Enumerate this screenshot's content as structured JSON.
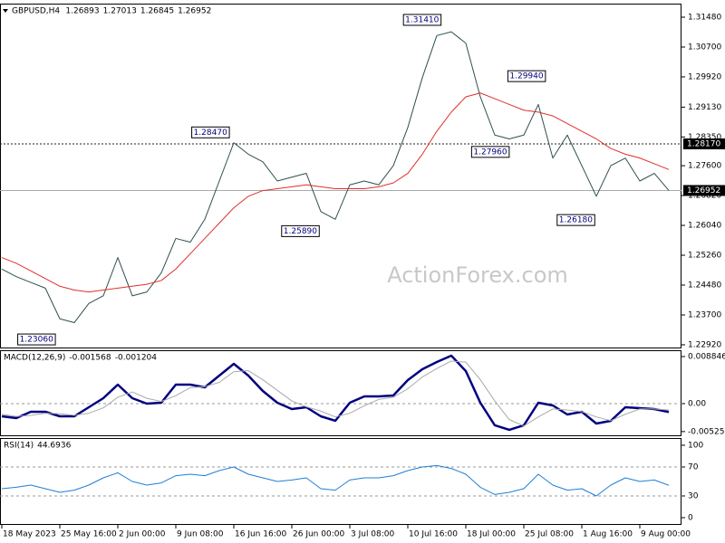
{
  "chart_data": [
    {
      "type": "line",
      "title": "GBPUSD,H4",
      "ohlc": [
        1.26893,
        1.27013,
        1.26845,
        1.26952
      ],
      "watermark": "ActionForex.com",
      "series": [
        {
          "color": "#2f4f4f",
          "values": [
            1.249,
            1.247,
            1.2455,
            1.244,
            1.236,
            1.235,
            1.24,
            1.242,
            1.252,
            1.242,
            1.243,
            1.248,
            1.257,
            1.256,
            1.262,
            1.272,
            1.282,
            1.279,
            1.277,
            1.272,
            1.273,
            1.274,
            1.264,
            1.262,
            1.271,
            1.272,
            1.271,
            1.276,
            1.286,
            1.299,
            1.31,
            1.311,
            1.308,
            1.294,
            1.284,
            1.283,
            1.284,
            1.292,
            1.278,
            1.284,
            1.276,
            1.268,
            1.276,
            1.278,
            1.272,
            1.274,
            1.26952
          ]
        },
        {
          "color": "#e0302a",
          "values": [
            1.252,
            1.2505,
            1.2485,
            1.2465,
            1.2445,
            1.2435,
            1.243,
            1.2435,
            1.244,
            1.2445,
            1.245,
            1.246,
            1.249,
            1.253,
            1.257,
            1.261,
            1.265,
            1.268,
            1.2695,
            1.27,
            1.2705,
            1.271,
            1.2705,
            1.27,
            1.27,
            1.27,
            1.2705,
            1.2715,
            1.274,
            1.279,
            1.285,
            1.29,
            1.294,
            1.295,
            1.2935,
            1.292,
            1.2905,
            1.29,
            1.289,
            1.287,
            1.285,
            1.283,
            1.2805,
            1.279,
            1.278,
            1.2765,
            1.275
          ]
        }
      ],
      "ylim": [
        1.22825,
        1.31835
      ],
      "yticks": [
        {
          "value": 1.3148,
          "label": "1.31480"
        },
        {
          "value": 1.307,
          "label": "1.30700"
        },
        {
          "value": 1.2992,
          "label": "1.29920"
        },
        {
          "value": 1.2913,
          "label": "1.29130"
        },
        {
          "value": 1.2835,
          "label": "1.28350"
        },
        {
          "value": 1.276,
          "label": "1.27600"
        },
        {
          "value": 1.2682,
          "label": "1.26820"
        },
        {
          "value": 1.2604,
          "label": "1.26040"
        },
        {
          "value": 1.2526,
          "label": "1.25260"
        },
        {
          "value": 1.2448,
          "label": "1.24480"
        },
        {
          "value": 1.237,
          "label": "1.23700"
        },
        {
          "value": 1.2292,
          "label": "1.22920"
        }
      ],
      "hlines": [
        {
          "value": 1.2817,
          "label": "1.28170",
          "style": "dashed"
        },
        {
          "value": 1.26952,
          "label": "1.26952",
          "style": "solid"
        }
      ],
      "annotations": [
        {
          "value": 1.3141,
          "label": "1.31410",
          "index": 30.4
        },
        {
          "value": 1.2847,
          "label": "1.28470",
          "index": 15.8
        },
        {
          "value": 1.2589,
          "label": "1.25890",
          "index": 22
        },
        {
          "value": 1.2306,
          "label": "1.23060",
          "index": 3.8
        },
        {
          "value": 1.2994,
          "label": "1.29940",
          "index": 37.6
        },
        {
          "value": 1.2796,
          "label": "1.27960",
          "index": 35.1
        },
        {
          "value": 1.2618,
          "label": "1.26180",
          "index": 41
        }
      ]
    },
    {
      "type": "line",
      "title": "MACD(12,26,9)",
      "header_values": [
        -0.001568,
        -0.001204
      ],
      "series": [
        {
          "color": "#000080",
          "values": [
            -0.00238,
            -0.00272,
            -0.00153,
            -0.00153,
            -0.00238,
            -0.00238,
            -0.00068,
            0.00102,
            0.00357,
            0.00102,
            0,
            0.00017,
            0.00357,
            0.00357,
            0.00306,
            0.00527,
            0.00748,
            0.00527,
            0.00238,
            0.00017,
            -0.00102,
            -0.00068,
            -0.00238,
            -0.00323,
            0.00017,
            0.00136,
            0.00136,
            0.00153,
            0.00442,
            0.00646,
            0.00782,
            0.00901,
            0.00612,
            0.00017,
            -0.00408,
            -0.00493,
            -0.00408,
            0.00017,
            -0.00034,
            -0.00204,
            -0.00153,
            -0.00374,
            -0.00323,
            -0.00068,
            -0.00085,
            -0.00102,
            -0.001568
          ]
        },
        {
          "color": "#a9a9a9",
          "values": [
            -0.002,
            -0.0024,
            -0.0022,
            -0.0018,
            -0.0019,
            -0.0022,
            -0.0018,
            -0.0008,
            0.0012,
            0.0022,
            0.001,
            0.0004,
            0.0015,
            0.003,
            0.0032,
            0.004,
            0.006,
            0.0062,
            0.0045,
            0.0025,
            0.0005,
            -0.0006,
            -0.0014,
            -0.0025,
            -0.0018,
            -0.0004,
            0.0008,
            0.0012,
            0.0028,
            0.005,
            0.0066,
            0.008,
            0.0078,
            0.0045,
            0.0005,
            -0.003,
            -0.0042,
            -0.0025,
            -0.001,
            -0.0012,
            -0.0015,
            -0.0025,
            -0.0032,
            -0.002,
            -0.001,
            -0.001,
            -0.001204
          ]
        }
      ],
      "ylim": [
        -0.006122,
        0.010034
      ],
      "yticks": [
        0.008846,
        {
          "value": 0,
          "label": "0.00"
        },
        -0.005252
      ],
      "dashed_levels": [
        0
      ]
    },
    {
      "type": "line",
      "title": "RSI(14)",
      "header_values": [
        44.6936
      ],
      "series": [
        {
          "color": "#1e7fd6",
          "values": [
            40,
            42,
            45,
            40,
            35,
            38,
            45,
            55,
            62,
            50,
            45,
            48,
            58,
            60,
            58,
            65,
            70,
            60,
            55,
            50,
            52,
            55,
            40,
            38,
            52,
            55,
            55,
            58,
            65,
            70,
            72,
            68,
            60,
            42,
            32,
            35,
            40,
            60,
            45,
            38,
            40,
            30,
            45,
            55,
            50,
            52,
            44.6936
          ]
        }
      ],
      "ylim": [
        -10,
        110
      ],
      "yticks": [
        100,
        70,
        30,
        0
      ],
      "dashed_levels": [
        70,
        30
      ],
      "xticks": [
        {
          "value": 0,
          "label": "18 May 2023"
        },
        {
          "value": 4,
          "label": "25 May 16:00"
        },
        {
          "value": 8,
          "label": "2 Jun 00:00"
        },
        {
          "value": 12,
          "label": "9 Jun 08:00"
        },
        {
          "value": 16,
          "label": "16 Jun 16:00"
        },
        {
          "value": 20,
          "label": "26 Jun 00:00"
        },
        {
          "value": 24,
          "label": "3 Jul 08:00"
        },
        {
          "value": 28,
          "label": "10 Jul 16:00"
        },
        {
          "value": 32,
          "label": "18 Jul 00:00"
        },
        {
          "value": 36,
          "label": "25 Jul 08:00"
        },
        {
          "value": 40,
          "label": "1 Aug 16:00"
        },
        {
          "value": 44,
          "label": "9 Aug 00:00"
        }
      ]
    }
  ]
}
